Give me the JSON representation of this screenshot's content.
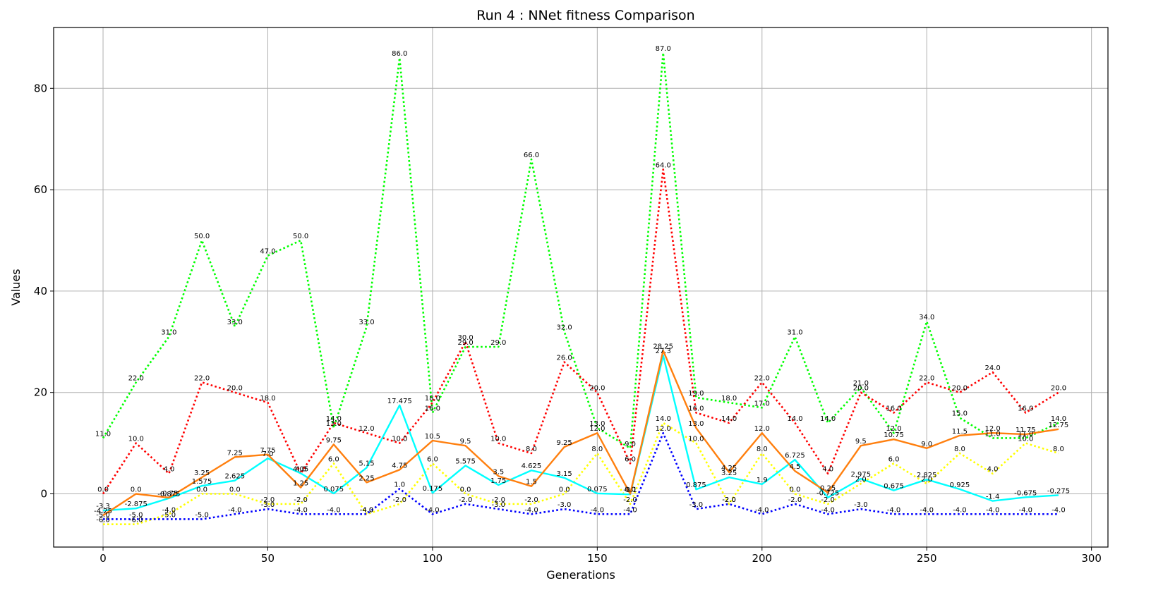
{
  "chart_data": {
    "type": "line",
    "title": "Run 4 : NNet fitness Comparison",
    "xlabel": "Generations",
    "ylabel": "Values",
    "xlim": [
      -15,
      305
    ],
    "ylim": [
      -10.5,
      92
    ],
    "xticks": [
      0,
      50,
      100,
      150,
      200,
      250,
      300
    ],
    "yticks": [
      0,
      20,
      40,
      60,
      80
    ],
    "grid": true,
    "x": [
      0,
      10,
      20,
      30,
      40,
      50,
      60,
      70,
      80,
      90,
      100,
      110,
      120,
      130,
      140,
      150,
      160,
      170,
      180,
      190,
      200,
      210,
      220,
      230,
      240,
      250,
      260,
      270,
      280,
      290
    ],
    "series": [
      {
        "color": "#00ff00",
        "style": "dotted",
        "values": [
          11.0,
          22.0,
          31.0,
          50.0,
          33.0,
          47.0,
          50.0,
          13.0,
          33.0,
          86.0,
          16.0,
          29.0,
          29.0,
          66.0,
          32.0,
          13.0,
          9.0,
          87.0,
          19.0,
          18.0,
          17.0,
          31.0,
          14.0,
          21.0,
          12.0,
          34.0,
          15.0,
          11.0,
          11.0,
          14.0
        ],
        "labels": [
          "11.0",
          "22.0",
          "31.0",
          "50.0",
          "33.0",
          "47.0",
          "50.0",
          "13.0",
          "33.0",
          "86.0",
          "16.0",
          "29.0",
          "29.0",
          "66.0",
          "32.0",
          "13.0",
          "9.0",
          "87.0",
          "19.0",
          "18.0",
          "17.0",
          "31.0",
          "14.0",
          "21.0",
          "12.0",
          "34.0",
          "15.0",
          "11.0",
          "11.0",
          "14.0"
        ]
      },
      {
        "color": "#ff0000",
        "style": "dotted",
        "values": [
          0.0,
          10.0,
          4.0,
          22.0,
          20.0,
          18.0,
          4.0,
          14.0,
          12.0,
          10.0,
          18.0,
          30.0,
          10.0,
          8.0,
          26.0,
          20.0,
          6.0,
          64.0,
          16.0,
          14.0,
          22.0,
          14.0,
          4.0,
          20.0,
          16.0,
          22.0,
          20.0,
          24.0,
          16.0,
          20.0
        ],
        "labels": [
          "0.0",
          "10.0",
          "4.0",
          "22.0",
          "20.0",
          "18.0",
          "4.0",
          "14.0",
          "12.0",
          "10.0",
          "18.0",
          "30.0",
          "10.0",
          "8.0",
          "26.0",
          "20.0",
          "6.0",
          "64.0",
          "16.0",
          "14.0",
          "22.0",
          "14.0",
          "4.0",
          "20.0",
          "16.0",
          "22.0",
          "20.0",
          "24.0",
          "16.0",
          "20.0"
        ]
      },
      {
        "color": "#ffff00",
        "style": "dotted",
        "values": [
          -6.0,
          -6.0,
          -4.0,
          0.0,
          0.0,
          -2.0,
          -2.0,
          6.0,
          -4.0,
          -2.0,
          6.0,
          0.0,
          -2.0,
          -2.0,
          0.0,
          8.0,
          -2.0,
          14.0,
          10.0,
          -2.0,
          8.0,
          0.0,
          -2.0,
          2.0,
          6.0,
          2.0,
          8.0,
          4.0,
          10.0,
          8.0
        ],
        "labels": [
          "-6.0",
          "-6.0",
          "-4.0",
          "0.0",
          "0.0",
          "-2.0",
          "-2.0",
          "6.0",
          "-4.0",
          "-2.0",
          "6.0",
          "0.0",
          "-2.0",
          "-2.0",
          "0.0",
          "8.0",
          "-2.0",
          "14.0",
          "10.0",
          "-2.0",
          "8.0",
          "0.0",
          "-2.0",
          "2.0",
          "6.0",
          "2.0",
          "8.0",
          "4.0",
          "10.0",
          "8.0"
        ]
      },
      {
        "color": "#0000ff",
        "style": "dotted",
        "values": [
          -5.0,
          -5.0,
          -5.0,
          -5.0,
          -4.0,
          -3.0,
          -4.0,
          -4.0,
          -4.0,
          1.0,
          -4.0,
          -2.0,
          -3.0,
          -4.0,
          -3.0,
          -4.0,
          -4.0,
          12.0,
          -3.0,
          -2.0,
          -4.0,
          -2.0,
          -4.0,
          -3.0,
          -4.0,
          -4.0,
          -4.0,
          -4.0,
          -4.0,
          -4.0
        ],
        "labels": [
          "-5.0",
          "-5.0",
          "-5.0",
          "-5.0",
          "-4.0",
          "-3.0",
          "-4.0",
          "-4.0",
          "-4.0",
          "1.0",
          "-4.0",
          "-2.0",
          "-3.0",
          "-4.0",
          "-3.0",
          "-4.0",
          "-4.0",
          "12.0",
          "-3.0",
          "-2.0",
          "-4.0",
          "-2.0",
          "-4.0",
          "-3.0",
          "-4.0",
          "-4.0",
          "-4.0",
          "-4.0",
          "-4.0",
          "-4.0"
        ]
      },
      {
        "color": "#00ffff",
        "style": "solid",
        "values": [
          -3.3,
          -2.875,
          -0.875,
          1.575,
          2.625,
          7.0,
          4.05,
          0.075,
          5.15,
          17.475,
          0.175,
          5.575,
          1.75,
          4.625,
          3.15,
          0.075,
          -0.1,
          27.3,
          0.875,
          3.25,
          1.9,
          6.725,
          -0.725,
          2.975,
          0.675,
          2.825,
          0.925,
          -1.4,
          -0.675,
          -0.275
        ],
        "labels": [
          "-3.3",
          "-2.875",
          "-0.875",
          "1.575",
          "2.625",
          "7.0",
          "4.05",
          "0.075",
          "5.15",
          "17.475",
          "0.175",
          "5.575",
          "1.75",
          "4.625",
          "3.15",
          "0.075",
          "-0.1",
          "27.3",
          "0.875",
          "3.25",
          "1.9",
          "6.725",
          "-0.725",
          "2.975",
          "0.675",
          "2.825",
          "0.925",
          "-1.4",
          "-0.675",
          "-0.275"
        ]
      },
      {
        "color": "#ff7f0e",
        "style": "solid",
        "values": [
          -4.25,
          0.0,
          -0.75,
          3.25,
          7.25,
          7.75,
          1.25,
          9.75,
          2.25,
          4.75,
          10.5,
          9.5,
          3.5,
          1.5,
          9.25,
          12.0,
          0.0,
          28.25,
          13.0,
          4.25,
          12.0,
          4.5,
          0.25,
          9.5,
          10.75,
          9.0,
          11.5,
          12.0,
          11.75,
          12.75
        ],
        "labels": [
          "-4.25",
          "0.0",
          "-0.75",
          "3.25",
          "7.25",
          "7.75",
          "1.25",
          "9.75",
          "2.25",
          "4.75",
          "10.5",
          "9.5",
          "3.5",
          "1.5",
          "9.25",
          "12.0",
          "0.0",
          "28.25",
          "13.0",
          "4.25",
          "12.0",
          "4.5",
          "0.25",
          "9.5",
          "10.75",
          "9.0",
          "11.5",
          "12.0",
          "11.75",
          "12.75"
        ]
      }
    ]
  }
}
